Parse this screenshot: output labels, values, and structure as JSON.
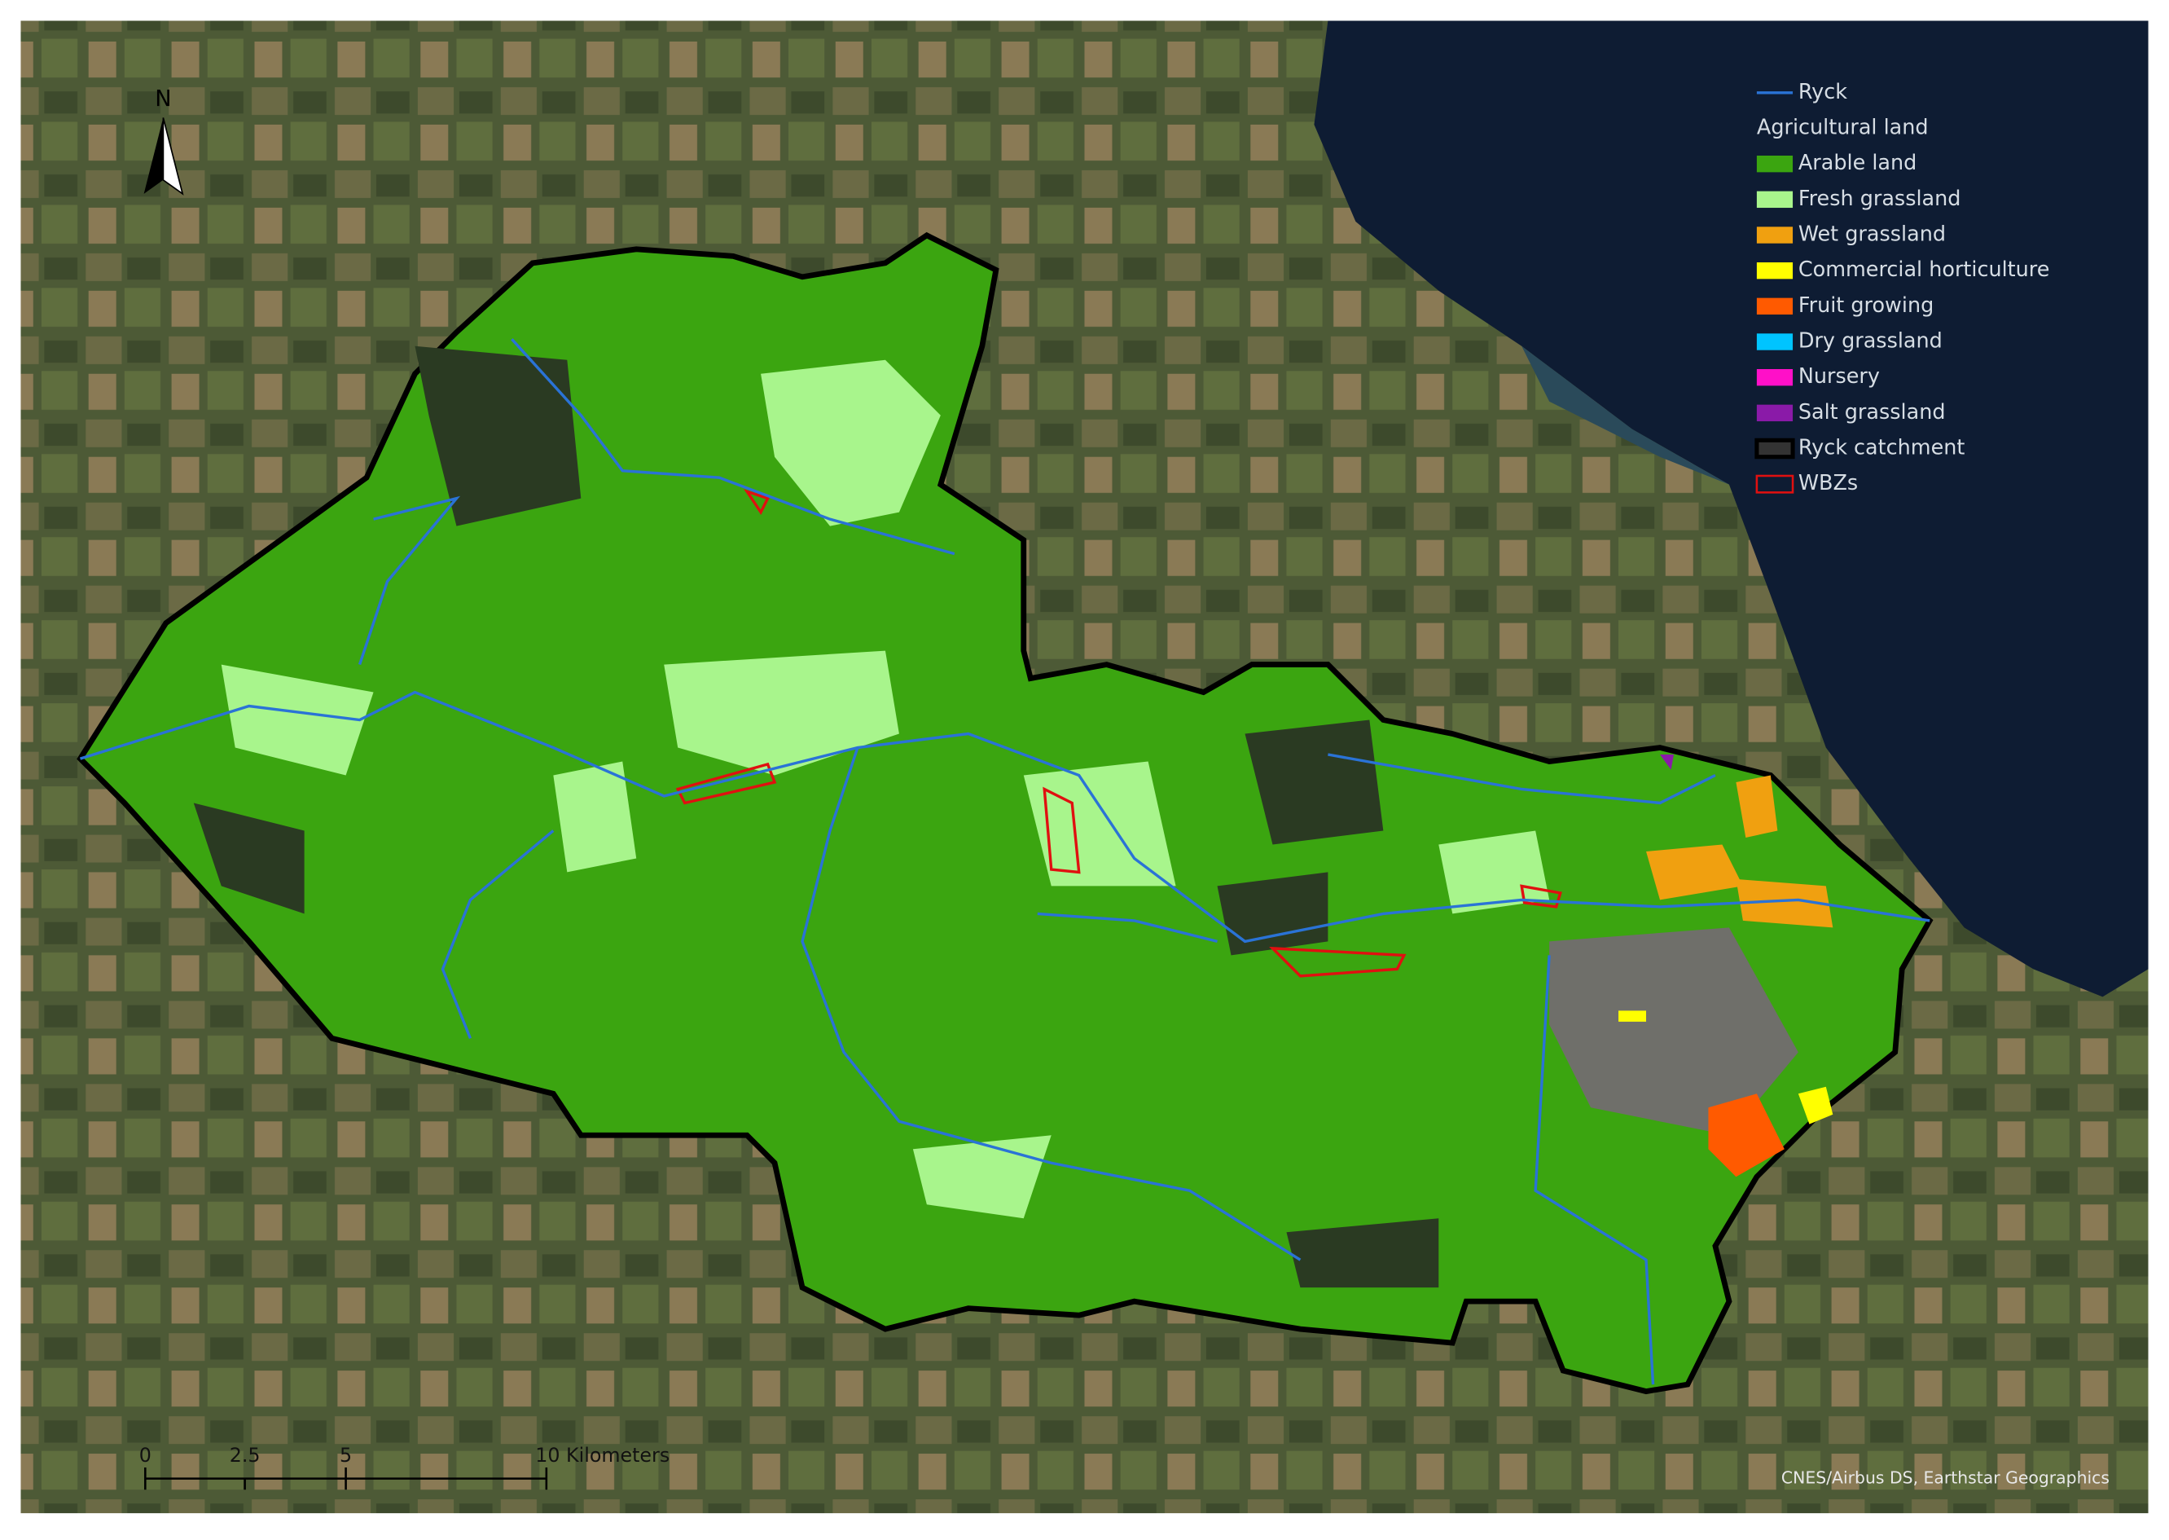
{
  "map": {
    "north_label": "N",
    "legend": {
      "items": [
        {
          "label": "Ryck",
          "symbol": "line",
          "color": "#2a73d6"
        },
        {
          "label": "Agricultural land",
          "symbol": "header"
        },
        {
          "label": "Arable land",
          "symbol": "fill",
          "color": "#3ba510"
        },
        {
          "label": "Fresh grassland",
          "symbol": "fill",
          "color": "#a8f58c"
        },
        {
          "label": "Wet grassland",
          "symbol": "fill",
          "color": "#f0a010"
        },
        {
          "label": "Commercial horticulture",
          "symbol": "fill",
          "color": "#ffff00"
        },
        {
          "label": "Fruit growing",
          "symbol": "fill",
          "color": "#ff5a00"
        },
        {
          "label": "Dry grassland",
          "symbol": "fill",
          "color": "#00c4ff"
        },
        {
          "label": "Nursery",
          "symbol": "fill",
          "color": "#ff10c8"
        },
        {
          "label": "Salt grassland",
          "symbol": "fill",
          "color": "#8a1aa8"
        },
        {
          "label": "Ryck catchment",
          "symbol": "boundary",
          "color": "#000000"
        },
        {
          "label": "WBZs",
          "symbol": "outline",
          "color": "#e01010"
        }
      ]
    },
    "scale_bar": {
      "labels": [
        "0",
        "2.5",
        "5",
        "10 Kilometers"
      ]
    },
    "attribution": "CNES/Airbus DS, Earthstar Geographics"
  }
}
